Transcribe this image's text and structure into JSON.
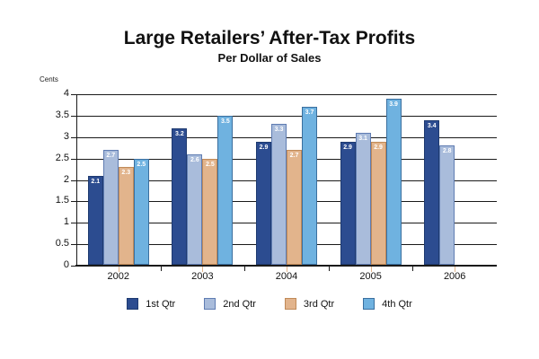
{
  "title": "Large Retailers’ After-Tax Profits",
  "subtitle": "Per Dollar of Sales",
  "chart_data": {
    "type": "bar",
    "title": "Large Retailers’ After-Tax Profits",
    "subtitle": "Per Dollar of Sales",
    "ylabel": "Cents",
    "xlabel": "",
    "categories": [
      "2002",
      "2003",
      "2004",
      "2005",
      "2006"
    ],
    "series": [
      {
        "name": "1st Qtr",
        "color": "#2c4c90",
        "border_color": "#1e3a70",
        "values": [
          2.1,
          3.2,
          2.9,
          2.9,
          3.4
        ]
      },
      {
        "name": "2nd Qtr",
        "color": "#a9bcdb",
        "border_color": "#5f7cb2",
        "values": [
          2.7,
          2.6,
          3.3,
          3.1,
          2.8
        ]
      },
      {
        "name": "3rd Qtr",
        "color": "#e2b48c",
        "border_color": "#c08a58",
        "values": [
          2.3,
          2.5,
          2.7,
          2.9,
          null
        ]
      },
      {
        "name": "4th Qtr",
        "color": "#6fb2e0",
        "border_color": "#3a6f9f",
        "values": [
          2.5,
          3.5,
          3.7,
          3.9,
          null
        ]
      }
    ],
    "ylim": [
      0,
      4
    ],
    "ytick_step": 0.5,
    "ytick_labels": [
      "0",
      "0.5",
      "1",
      "1.5",
      "2",
      "2.5",
      "3",
      "3.5",
      "4"
    ],
    "grid": true,
    "bar_labels_visible": true,
    "legend_position": "bottom",
    "axis_color": "#1a1a1a",
    "category_tick_color": "#e2b48c",
    "bar_label_color": "#ffffff"
  }
}
